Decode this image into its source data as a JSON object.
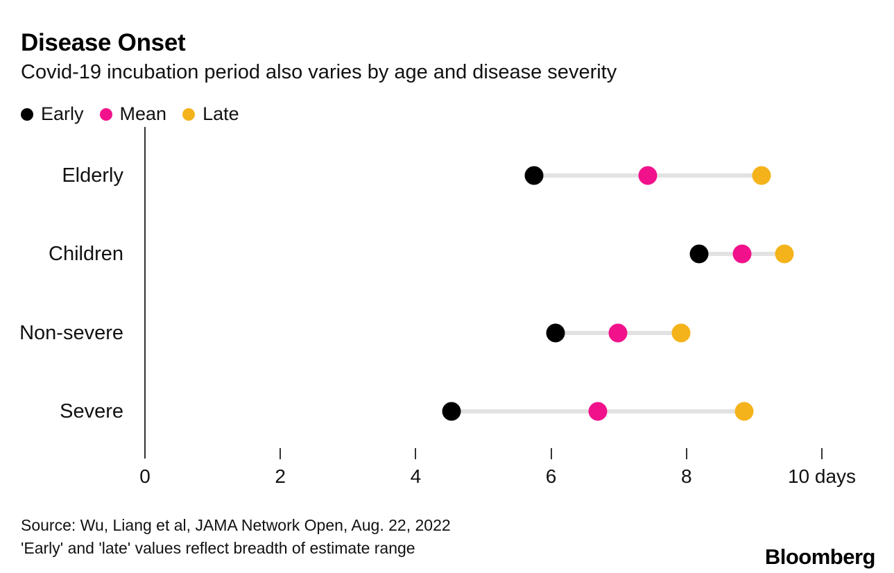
{
  "header": {
    "title": "Disease Onset",
    "subtitle": "Covid-19 incubation period also varies by age and disease severity"
  },
  "legend": [
    {
      "label": "Early",
      "color": "#000000"
    },
    {
      "label": "Mean",
      "color": "#F1128B"
    },
    {
      "label": "Late",
      "color": "#F5B31B"
    }
  ],
  "chart_data": {
    "type": "scatter",
    "subtype": "dot-range",
    "title": "Disease Onset",
    "subtitle": "Covid-19 incubation period also varies by age and disease severity",
    "categories": [
      "Elderly",
      "Children",
      "Non-severe",
      "Severe"
    ],
    "series": [
      {
        "name": "Early",
        "color": "#000000",
        "values": [
          5.75,
          8.19,
          6.07,
          4.53
        ]
      },
      {
        "name": "Mean",
        "color": "#F1128B",
        "values": [
          7.43,
          8.82,
          6.99,
          6.69
        ]
      },
      {
        "name": "Late",
        "color": "#F5B31B",
        "values": [
          9.11,
          9.45,
          7.92,
          8.85
        ]
      }
    ],
    "xlim": [
      0,
      10
    ],
    "tick_values": [
      0,
      2,
      4,
      6,
      8,
      10
    ],
    "tick_labels": [
      "0",
      "2",
      "4",
      "6",
      "8",
      "10 days"
    ],
    "unit": "days",
    "grid": "off",
    "legend_position": "top-left",
    "range_line_color": "#e2e2e2",
    "axis_color": "#333333"
  },
  "footer": {
    "source_line1": "Source: Wu, Liang et al, JAMA Network Open, Aug. 22, 2022",
    "source_line2": "'Early' and 'late' values reflect breadth of estimate range",
    "brand": "Bloomberg"
  }
}
